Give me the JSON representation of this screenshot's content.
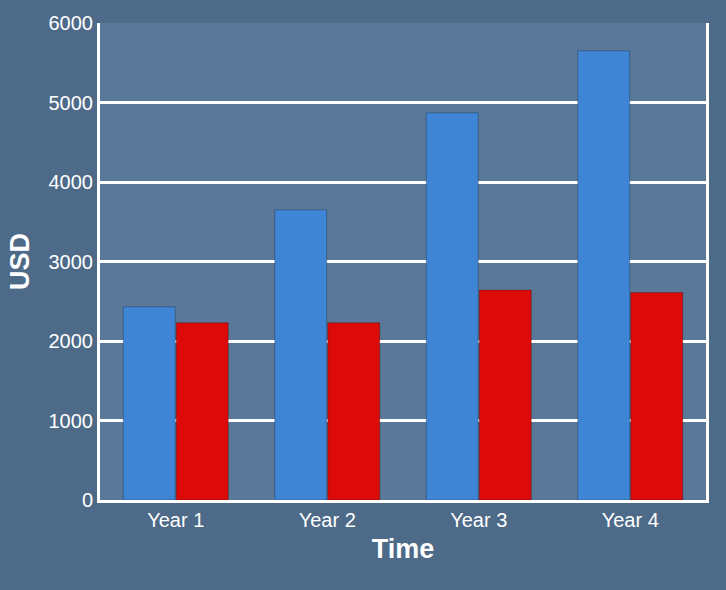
{
  "chart_data": {
    "type": "bar",
    "x_label": "Time",
    "y_label": "USD",
    "categories": [
      "Year 1",
      "Year 2",
      "Year 3",
      "Year 4"
    ],
    "series": [
      {
        "color": "#3f85d6",
        "values": [
          2430,
          3650,
          4870,
          5650
        ]
      },
      {
        "color": "#dd0a0a",
        "values": [
          2230,
          2230,
          2640,
          2610
        ]
      }
    ],
    "ylim": [
      0,
      6000
    ],
    "yticks": [
      0,
      1000,
      2000,
      3000,
      4000,
      5000,
      6000
    ],
    "grid": true
  }
}
